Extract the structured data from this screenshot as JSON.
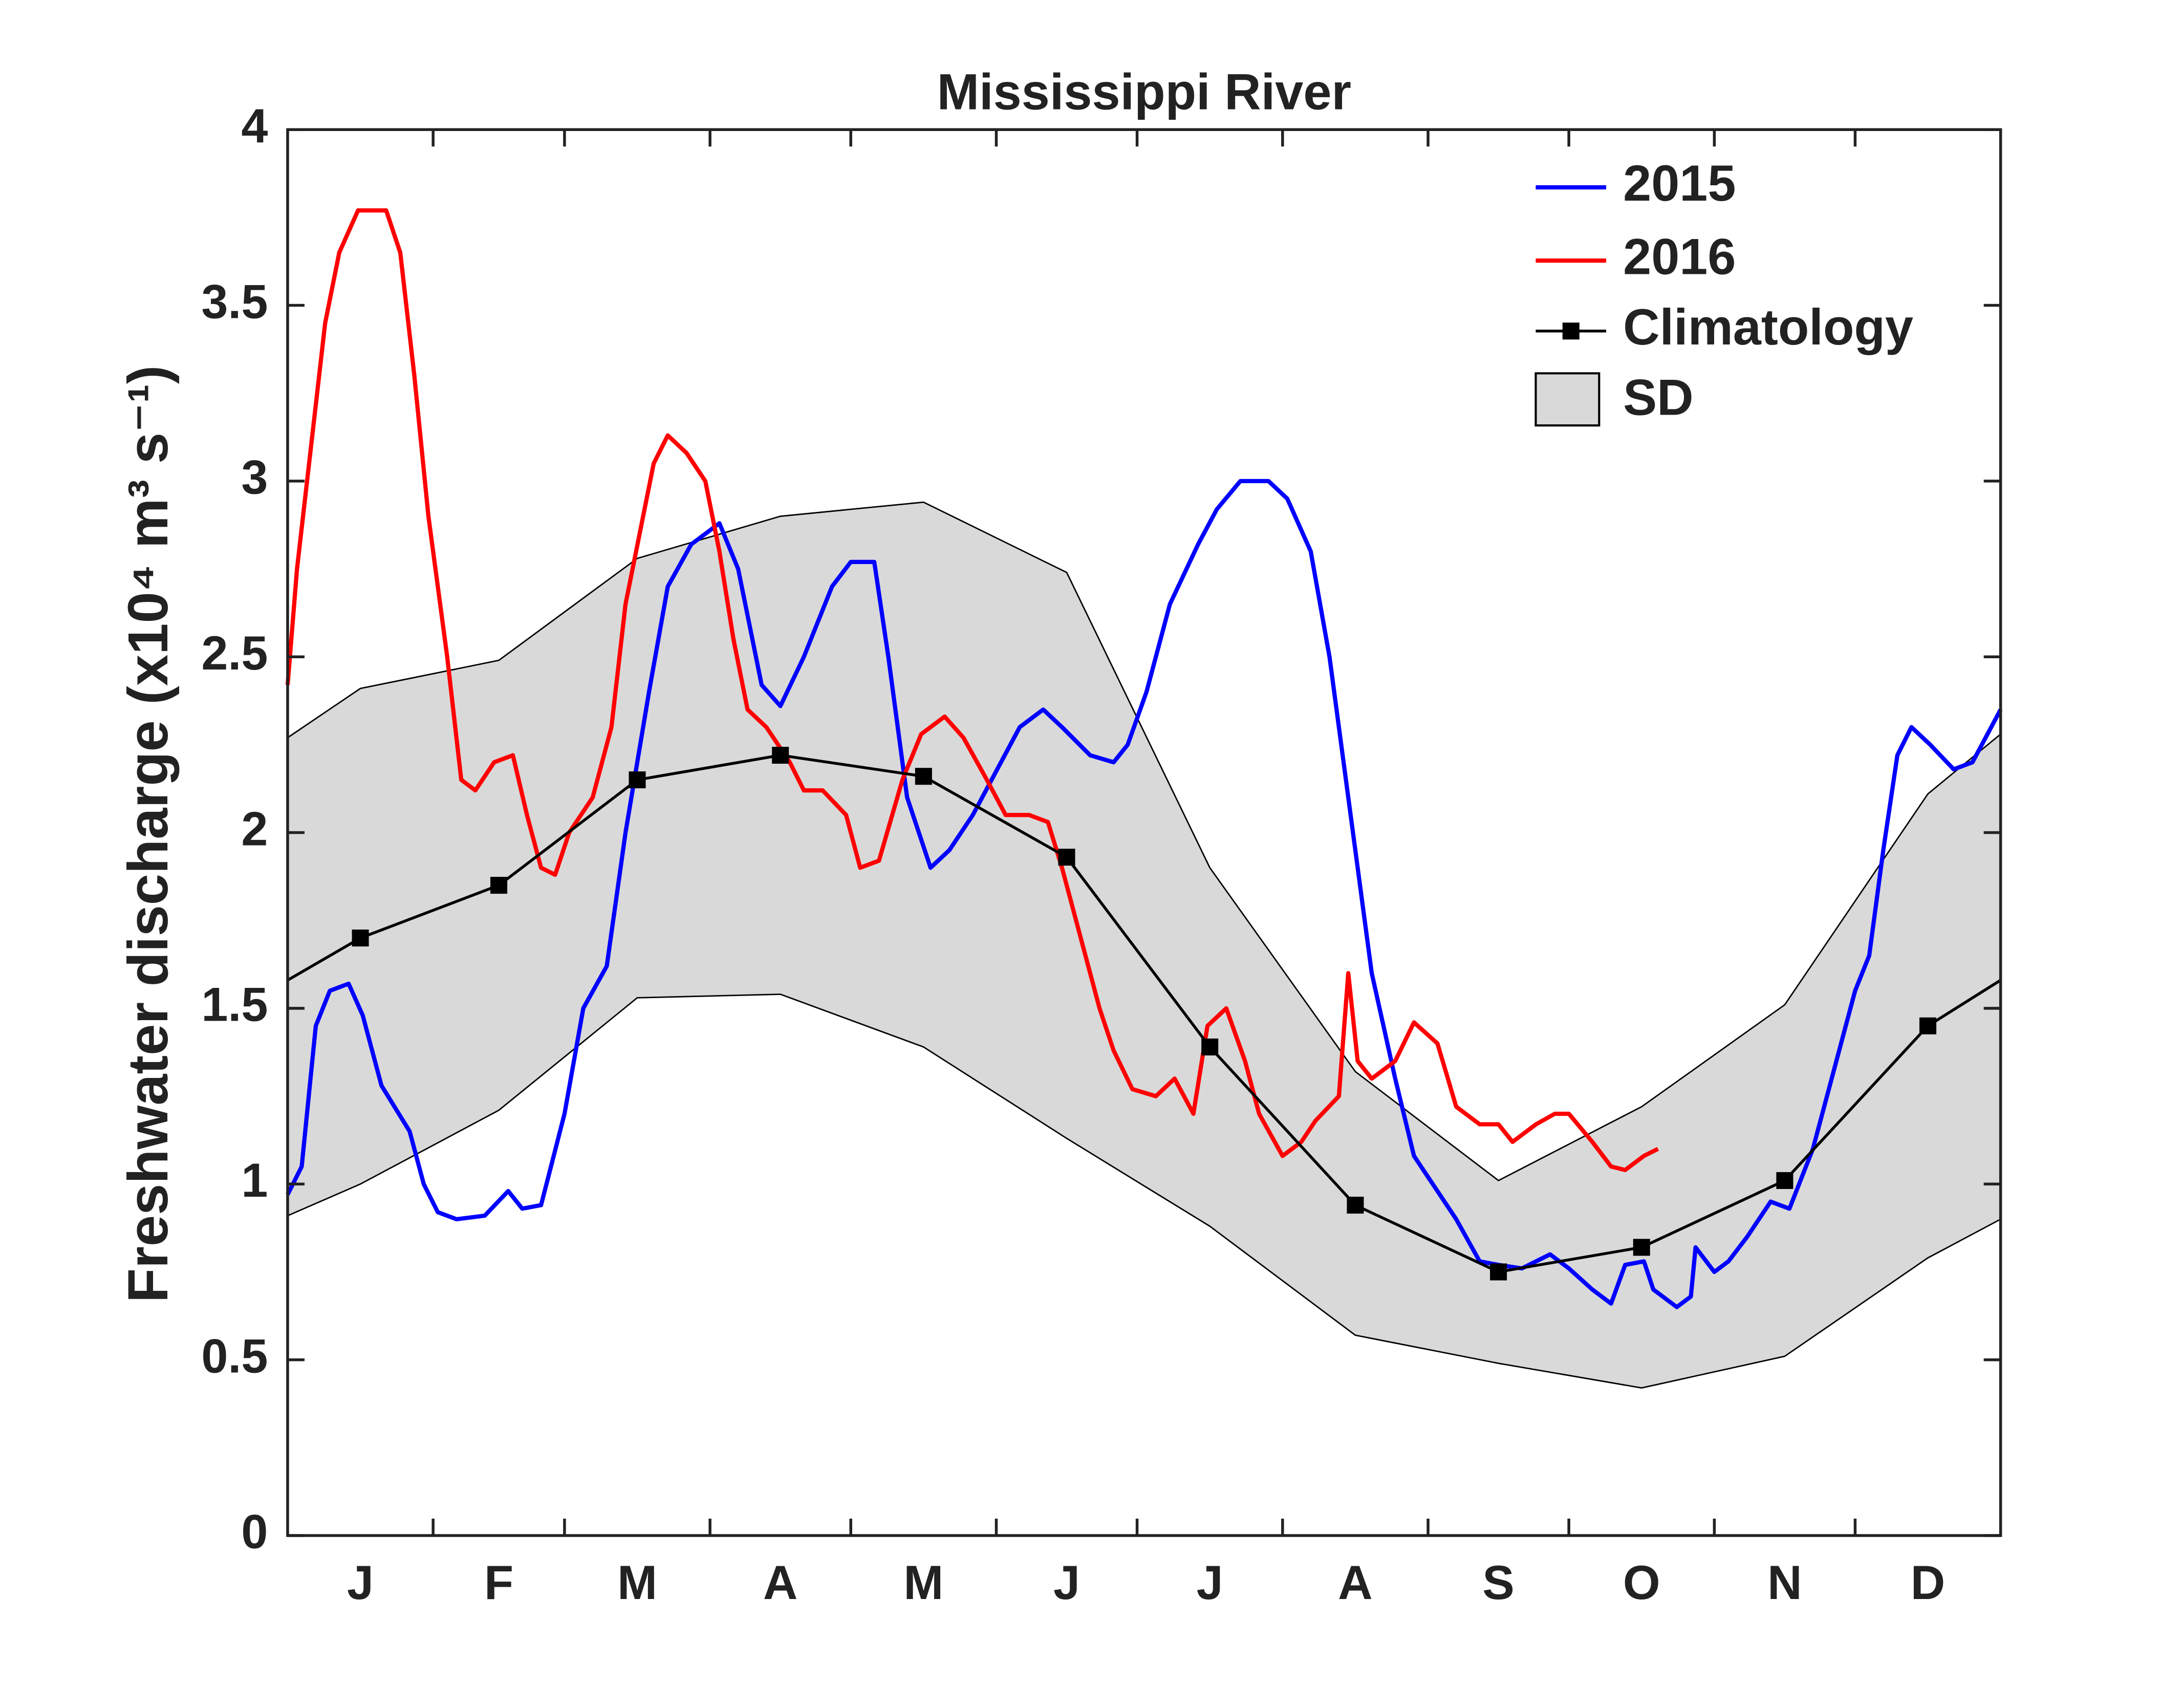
{
  "chart_data": {
    "type": "line",
    "title": "Mississippi River",
    "ylabel": "Freshwater discharge (x10⁴ m³ s⁻¹)",
    "xlim": [
      0,
      365
    ],
    "ylim": [
      0,
      4
    ],
    "yticks": [
      0,
      0.5,
      1,
      1.5,
      2,
      2.5,
      3,
      3.5,
      4
    ],
    "xticks": [
      {
        "value": 15.5,
        "label": "J"
      },
      {
        "value": 45,
        "label": "F"
      },
      {
        "value": 74.5,
        "label": "M"
      },
      {
        "value": 105,
        "label": "A"
      },
      {
        "value": 135.5,
        "label": "M"
      },
      {
        "value": 166,
        "label": "J"
      },
      {
        "value": 196.5,
        "label": "J"
      },
      {
        "value": 227.5,
        "label": "A"
      },
      {
        "value": 258,
        "label": "S"
      },
      {
        "value": 288.5,
        "label": "O"
      },
      {
        "value": 319,
        "label": "N"
      },
      {
        "value": 349.5,
        "label": "D"
      }
    ],
    "xminor_ticks": [
      31,
      59,
      90,
      120,
      151,
      181,
      212,
      243,
      273,
      304,
      334
    ],
    "legend": "upper right",
    "series": [
      {
        "name": "2015",
        "color": "#0000ff",
        "x": [
          0,
          3,
          6,
          9,
          13,
          16,
          20,
          26,
          29,
          32,
          36,
          42,
          47,
          50,
          54,
          59,
          63,
          68,
          72,
          77,
          81,
          86,
          92,
          96,
          101,
          105,
          110,
          116,
          120,
          125,
          128,
          132,
          137,
          141,
          146,
          152,
          156,
          161,
          165,
          171,
          176,
          179,
          183,
          188,
          194,
          198,
          203,
          209,
          213,
          218,
          222,
          225,
          228,
          231,
          236,
          240,
          245,
          249,
          254,
          258,
          263,
          269,
          273,
          278,
          282,
          285,
          289,
          291,
          296,
          299,
          300,
          304,
          307,
          311,
          316,
          320,
          325,
          329,
          334,
          337,
          340,
          343,
          346,
          350,
          355,
          359,
          365
        ],
        "values": [
          0.97,
          1.05,
          1.45,
          1.55,
          1.57,
          1.48,
          1.28,
          1.15,
          1.0,
          0.92,
          0.9,
          0.91,
          0.98,
          0.93,
          0.94,
          1.2,
          1.5,
          1.62,
          2.0,
          2.4,
          2.7,
          2.82,
          2.88,
          2.75,
          2.42,
          2.36,
          2.5,
          2.7,
          2.77,
          2.77,
          2.5,
          2.1,
          1.9,
          1.95,
          2.05,
          2.2,
          2.3,
          2.35,
          2.3,
          2.22,
          2.2,
          2.25,
          2.4,
          2.65,
          2.82,
          2.92,
          3.0,
          3.0,
          2.95,
          2.8,
          2.5,
          2.2,
          1.9,
          1.6,
          1.3,
          1.08,
          0.98,
          0.9,
          0.78,
          0.77,
          0.76,
          0.8,
          0.76,
          0.7,
          0.66,
          0.77,
          0.78,
          0.7,
          0.65,
          0.68,
          0.82,
          0.75,
          0.78,
          0.85,
          0.95,
          0.93,
          1.1,
          1.3,
          1.55,
          1.65,
          1.95,
          2.22,
          2.3,
          2.25,
          2.18,
          2.2,
          2.35
        ]
      },
      {
        "name": "2016",
        "color": "#ff0000",
        "x": [
          0,
          2,
          5,
          8,
          11,
          15,
          18,
          21,
          24,
          27,
          30,
          34,
          37,
          40,
          44,
          48,
          51,
          54,
          57,
          60,
          65,
          69,
          72,
          75,
          78,
          81,
          85,
          89,
          92,
          95,
          98,
          102,
          107,
          110,
          114,
          119,
          122,
          126,
          131,
          135,
          140,
          144,
          149,
          153,
          158,
          162,
          165,
          168,
          173,
          176,
          180,
          185,
          189,
          193,
          196,
          200,
          204,
          207,
          212,
          216,
          219,
          224,
          226,
          228,
          231,
          236,
          240,
          245,
          249,
          254,
          258,
          261,
          266,
          270,
          273,
          278,
          282,
          285,
          289,
          292
        ],
        "values": [
          2.42,
          2.75,
          3.1,
          3.45,
          3.65,
          3.77,
          3.77,
          3.77,
          3.65,
          3.3,
          2.9,
          2.5,
          2.15,
          2.12,
          2.2,
          2.22,
          2.05,
          1.9,
          1.88,
          2.0,
          2.1,
          2.3,
          2.65,
          2.85,
          3.05,
          3.13,
          3.08,
          3.0,
          2.8,
          2.55,
          2.35,
          2.3,
          2.2,
          2.12,
          2.12,
          2.05,
          1.9,
          1.92,
          2.15,
          2.28,
          2.33,
          2.27,
          2.15,
          2.05,
          2.05,
          2.03,
          1.9,
          1.75,
          1.5,
          1.38,
          1.27,
          1.25,
          1.3,
          1.2,
          1.45,
          1.5,
          1.35,
          1.2,
          1.08,
          1.12,
          1.18,
          1.25,
          1.6,
          1.35,
          1.3,
          1.35,
          1.46,
          1.4,
          1.22,
          1.17,
          1.17,
          1.12,
          1.17,
          1.2,
          1.2,
          1.12,
          1.05,
          1.04,
          1.08,
          1.1
        ]
      },
      {
        "name": "Climatology",
        "color": "#000000",
        "marker": "square",
        "x": [
          0,
          15.5,
          45,
          74.5,
          105,
          135.5,
          166,
          196.5,
          227.5,
          258,
          288.5,
          319,
          349.5,
          365
        ],
        "values": [
          1.58,
          1.7,
          1.85,
          2.15,
          2.22,
          2.16,
          1.93,
          1.39,
          0.94,
          0.75,
          0.82,
          1.01,
          1.45,
          1.58
        ]
      }
    ],
    "band": {
      "name": "SD",
      "color": "#d9d9d9",
      "x": [
        0,
        15.5,
        45,
        74.5,
        105,
        135.5,
        166,
        196.5,
        227.5,
        258,
        288.5,
        319,
        349.5,
        365
      ],
      "upper": [
        2.27,
        2.41,
        2.49,
        2.78,
        2.9,
        2.94,
        2.74,
        1.9,
        1.32,
        1.01,
        1.22,
        1.51,
        2.11,
        2.28
      ],
      "lower": [
        0.91,
        1.0,
        1.21,
        1.53,
        1.54,
        1.39,
        1.13,
        0.88,
        0.57,
        0.49,
        0.42,
        0.51,
        0.79,
        0.9
      ]
    }
  }
}
